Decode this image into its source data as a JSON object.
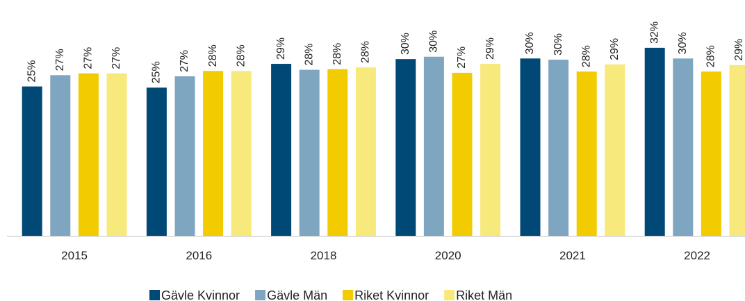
{
  "chart_data": {
    "type": "bar",
    "categories": [
      "2015",
      "2016",
      "2018",
      "2020",
      "2021",
      "2022"
    ],
    "series": [
      {
        "name": "Gävle Kvinnor",
        "color": "#004876",
        "values": [
          25.1,
          24.9,
          28.9,
          29.7,
          29.8,
          31.6
        ],
        "value_labels": [
          "25%",
          "25%",
          "29%",
          "30%",
          "30%",
          "32%"
        ]
      },
      {
        "name": "Gävle Män",
        "color": "#7fa6c0",
        "values": [
          27.0,
          26.8,
          27.9,
          30.1,
          29.6,
          29.8
        ],
        "value_labels": [
          "27%",
          "27%",
          "28%",
          "30%",
          "30%",
          "30%"
        ]
      },
      {
        "name": "Riket Kvinnor",
        "color": "#f2cb00",
        "values": [
          27.3,
          27.7,
          28.0,
          27.4,
          27.6,
          27.6
        ],
        "value_labels": [
          "27%",
          "28%",
          "28%",
          "27%",
          "28%",
          "28%"
        ]
      },
      {
        "name": "Riket Män",
        "color": "#f7e97b",
        "values": [
          27.3,
          27.7,
          28.3,
          28.9,
          28.8,
          28.7
        ],
        "value_labels": [
          "27%",
          "28%",
          "28%",
          "29%",
          "29%",
          "29%"
        ]
      }
    ],
    "legend": "bottom"
  }
}
